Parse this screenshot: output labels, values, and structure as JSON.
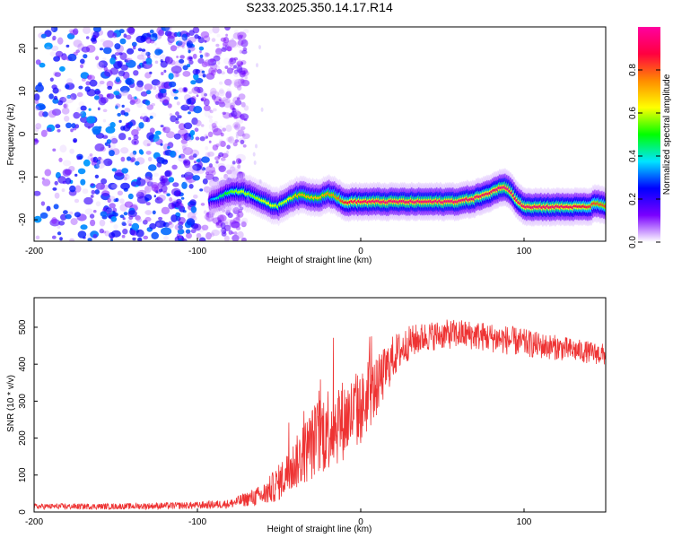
{
  "title": "S233.2025.350.14.17.R14",
  "chart_data": [
    {
      "type": "heatmap",
      "xlabel": "Height of straight line (km)",
      "ylabel": "Frequency (Hz)",
      "xlim": [
        -200,
        150
      ],
      "ylim": [
        -25,
        25
      ],
      "xticks": [
        -200,
        -100,
        0,
        100
      ],
      "yticks": [
        -20,
        -10,
        0,
        10,
        20
      ],
      "xtick_labels": [
        "-200",
        "-100",
        "0",
        "100"
      ],
      "ytick_labels": [
        "-20",
        "-10",
        "0",
        "10",
        "20"
      ],
      "colorbar": {
        "label": "Normalized spectral amplitude",
        "range": [
          0.0,
          1.0
        ],
        "ticks": [
          0.0,
          0.2,
          0.4,
          0.6,
          0.8
        ],
        "tick_labels": [
          "0.0",
          "0.2",
          "0.4",
          "0.6",
          "0.8"
        ],
        "colormap": [
          "#ffffff",
          "#7a00ff",
          "#0000ff",
          "#00e5ff",
          "#00ff00",
          "#ffff00",
          "#ff8c00",
          "#ff0040",
          "#ff00a0"
        ]
      },
      "ridge": {
        "x": [
          -92,
          -85,
          -78,
          -72,
          -66,
          -60,
          -55,
          -50,
          -45,
          -40,
          -35,
          -30,
          -25,
          -20,
          -15,
          -10,
          -5,
          0,
          10,
          20,
          30,
          40,
          50,
          60,
          70,
          75,
          80,
          85,
          90,
          95,
          100,
          105,
          110,
          120,
          130,
          140,
          145,
          150
        ],
        "y": [
          -15.5,
          -14.5,
          -13.3,
          -13.5,
          -14.2,
          -15.5,
          -16.5,
          -16.8,
          -15.5,
          -14.5,
          -14.2,
          -14.8,
          -14.8,
          -13.8,
          -14.5,
          -16.0,
          -15.8,
          -15.8,
          -15.8,
          -15.8,
          -15.8,
          -15.8,
          -15.8,
          -15.7,
          -15.0,
          -14.3,
          -13.8,
          -12.5,
          -12.5,
          -15.0,
          -16.8,
          -17.0,
          -17.0,
          -17.0,
          -17.0,
          -17.0,
          -16.0,
          -17.0
        ],
        "amplitude": [
          0.3,
          0.45,
          0.55,
          0.6,
          0.55,
          0.6,
          0.62,
          0.58,
          0.6,
          0.7,
          0.72,
          0.7,
          0.7,
          0.75,
          0.75,
          0.85,
          0.9,
          0.92,
          0.95,
          0.95,
          0.95,
          0.95,
          0.95,
          0.95,
          0.93,
          0.9,
          0.9,
          0.95,
          0.96,
          0.9,
          0.92,
          0.93,
          0.93,
          0.93,
          0.9,
          0.85,
          0.8,
          0.8
        ]
      },
      "noise_region": {
        "x_from": -200,
        "x_to": -70,
        "amplitude_max": 0.35
      }
    },
    {
      "type": "line",
      "xlabel": "Height of straight line (km)",
      "ylabel": "SNR (10 * v/v)",
      "xlim": [
        -200,
        150
      ],
      "ylim": [
        0,
        580
      ],
      "xticks": [
        -200,
        -100,
        0,
        100
      ],
      "yticks": [
        0,
        100,
        200,
        300,
        400,
        500
      ],
      "xtick_labels": [
        "-200",
        "-100",
        "0",
        "100"
      ],
      "ytick_labels": [
        "0",
        "100",
        "200",
        "300",
        "400",
        "500"
      ],
      "series": [
        {
          "name": "SNR",
          "color": "#ee3333",
          "x": [
            -200,
            -150,
            -100,
            -80,
            -70,
            -60,
            -50,
            -40,
            -30,
            -20,
            -10,
            0,
            10,
            20,
            30,
            40,
            50,
            60,
            70,
            80,
            90,
            100,
            110,
            120,
            130,
            140,
            150
          ],
          "values": [
            15,
            15,
            18,
            22,
            35,
            45,
            80,
            130,
            185,
            230,
            250,
            280,
            340,
            420,
            460,
            475,
            480,
            482,
            478,
            472,
            465,
            458,
            450,
            445,
            438,
            432,
            425
          ],
          "fluctuation": [
            8,
            8,
            10,
            12,
            20,
            30,
            50,
            70,
            100,
            120,
            110,
            100,
            80,
            60,
            45,
            40,
            40,
            40,
            40,
            40,
            40,
            38,
            36,
            34,
            32,
            30,
            30
          ]
        }
      ]
    }
  ]
}
